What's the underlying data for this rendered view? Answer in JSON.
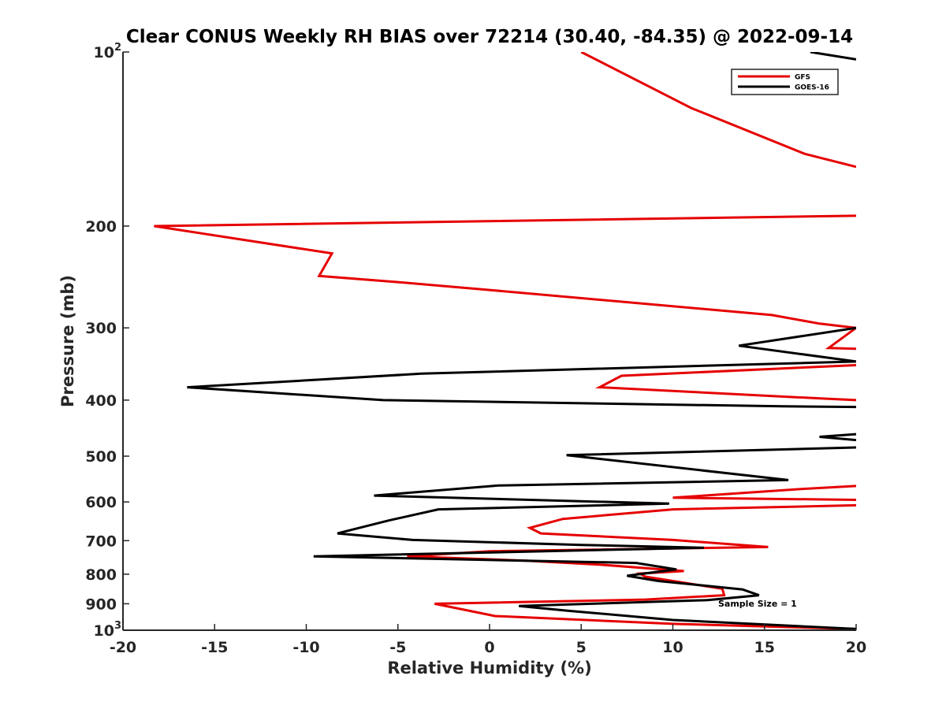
{
  "chart_data": {
    "type": "line",
    "title": "Clear CONUS Weekly RH BIAS over 72214 (30.40, -84.35) @ 2022-09-14",
    "xlabel": "Relative Humidity (%)",
    "ylabel": "Pressure (mb)",
    "xlim": [
      -20,
      20
    ],
    "ylim": [
      100,
      1000
    ],
    "yscale": "log",
    "y_reversed": true,
    "x_ticks": [
      {
        "value": -20,
        "label": "-20"
      },
      {
        "value": -15,
        "label": "-15"
      },
      {
        "value": -10,
        "label": "-10"
      },
      {
        "value": -5,
        "label": "-5"
      },
      {
        "value": 0,
        "label": "0"
      },
      {
        "value": 5,
        "label": "5"
      },
      {
        "value": 10,
        "label": "10"
      },
      {
        "value": 15,
        "label": "15"
      },
      {
        "value": 20,
        "label": "20"
      }
    ],
    "y_ticks": [
      {
        "value": 100,
        "base": "10",
        "exp": "2"
      },
      {
        "value": 200,
        "base": "200",
        "exp": ""
      },
      {
        "value": 300,
        "base": "300",
        "exp": ""
      },
      {
        "value": 400,
        "base": "400",
        "exp": ""
      },
      {
        "value": 500,
        "base": "500",
        "exp": ""
      },
      {
        "value": 600,
        "base": "600",
        "exp": ""
      },
      {
        "value": 700,
        "base": "700",
        "exp": ""
      },
      {
        "value": 800,
        "base": "800",
        "exp": ""
      },
      {
        "value": 900,
        "base": "900",
        "exp": ""
      },
      {
        "value": 1000,
        "base": "10",
        "exp": "3"
      }
    ],
    "legend_position": "top-right",
    "annotation": "Sample Size = 1",
    "series": [
      {
        "name": "GFS",
        "color": "#e60000",
        "points": [
          [
            5,
            100
          ],
          [
            11,
            125
          ],
          [
            17.2,
            150
          ],
          [
            20,
            158
          ],
          null,
          [
            20,
            192
          ],
          [
            -18.3,
            200
          ],
          [
            -8.6,
            223
          ],
          [
            -9.3,
            244
          ],
          [
            -5,
            250
          ],
          [
            0,
            258
          ],
          [
            15.4,
            285
          ],
          [
            18,
            295
          ],
          [
            20,
            300
          ],
          [
            18.5,
            325
          ],
          [
            20,
            326
          ],
          null,
          [
            20,
            348
          ],
          [
            7.2,
            363
          ],
          [
            6,
            380
          ],
          [
            18.5,
            398
          ],
          [
            20,
            400
          ],
          null,
          [
            20,
            563
          ],
          [
            17,
            570
          ],
          [
            10,
            590
          ],
          [
            20,
            595
          ],
          null,
          [
            20,
            608
          ],
          [
            10,
            618
          ],
          [
            4,
            642
          ],
          [
            2.2,
            665
          ],
          [
            2.8,
            680
          ],
          [
            10,
            698
          ],
          [
            15.2,
            718
          ],
          [
            0,
            730
          ],
          [
            -4.5,
            745
          ],
          [
            2,
            758
          ],
          [
            6,
            770
          ],
          [
            10.6,
            790
          ],
          [
            8.2,
            798
          ],
          [
            8.5,
            808
          ],
          [
            10,
            822
          ],
          [
            12.7,
            848
          ],
          [
            12.8,
            870
          ],
          [
            8.5,
            885
          ],
          [
            -3,
            900
          ],
          [
            0.3,
            945
          ],
          [
            10,
            975
          ],
          [
            20,
            995
          ]
        ]
      },
      {
        "name": "GOES-16",
        "color": "#000000",
        "points": [
          [
            17.5,
            100
          ],
          [
            20,
            103
          ],
          null,
          [
            20,
            300
          ],
          [
            13.6,
            322
          ],
          [
            20,
            343
          ],
          [
            -3.7,
            360
          ],
          [
            -16.5,
            380
          ],
          [
            -5.8,
            400
          ],
          [
            16,
            410
          ],
          [
            20,
            411
          ],
          null,
          [
            20,
            458
          ],
          [
            18,
            463
          ],
          [
            20,
            469
          ],
          null,
          [
            20,
            483
          ],
          [
            4.2,
            498
          ],
          [
            16.3,
            550
          ],
          [
            0.5,
            562
          ],
          [
            -6.3,
            585
          ],
          [
            9.8,
            604
          ],
          [
            -2.8,
            618
          ],
          [
            -5.5,
            646
          ],
          [
            -8.3,
            680
          ],
          [
            -4.2,
            698
          ],
          [
            5,
            712
          ],
          [
            11.7,
            720
          ],
          [
            -9.6,
            745
          ],
          [
            8,
            765
          ],
          [
            10.2,
            785
          ],
          [
            7.5,
            805
          ],
          [
            9.2,
            822
          ],
          [
            13.8,
            850
          ],
          [
            14.7,
            870
          ],
          [
            11.9,
            887
          ],
          [
            1.6,
            908
          ],
          [
            4.2,
            925
          ],
          [
            10,
            960
          ],
          [
            20,
            995
          ]
        ]
      }
    ]
  }
}
